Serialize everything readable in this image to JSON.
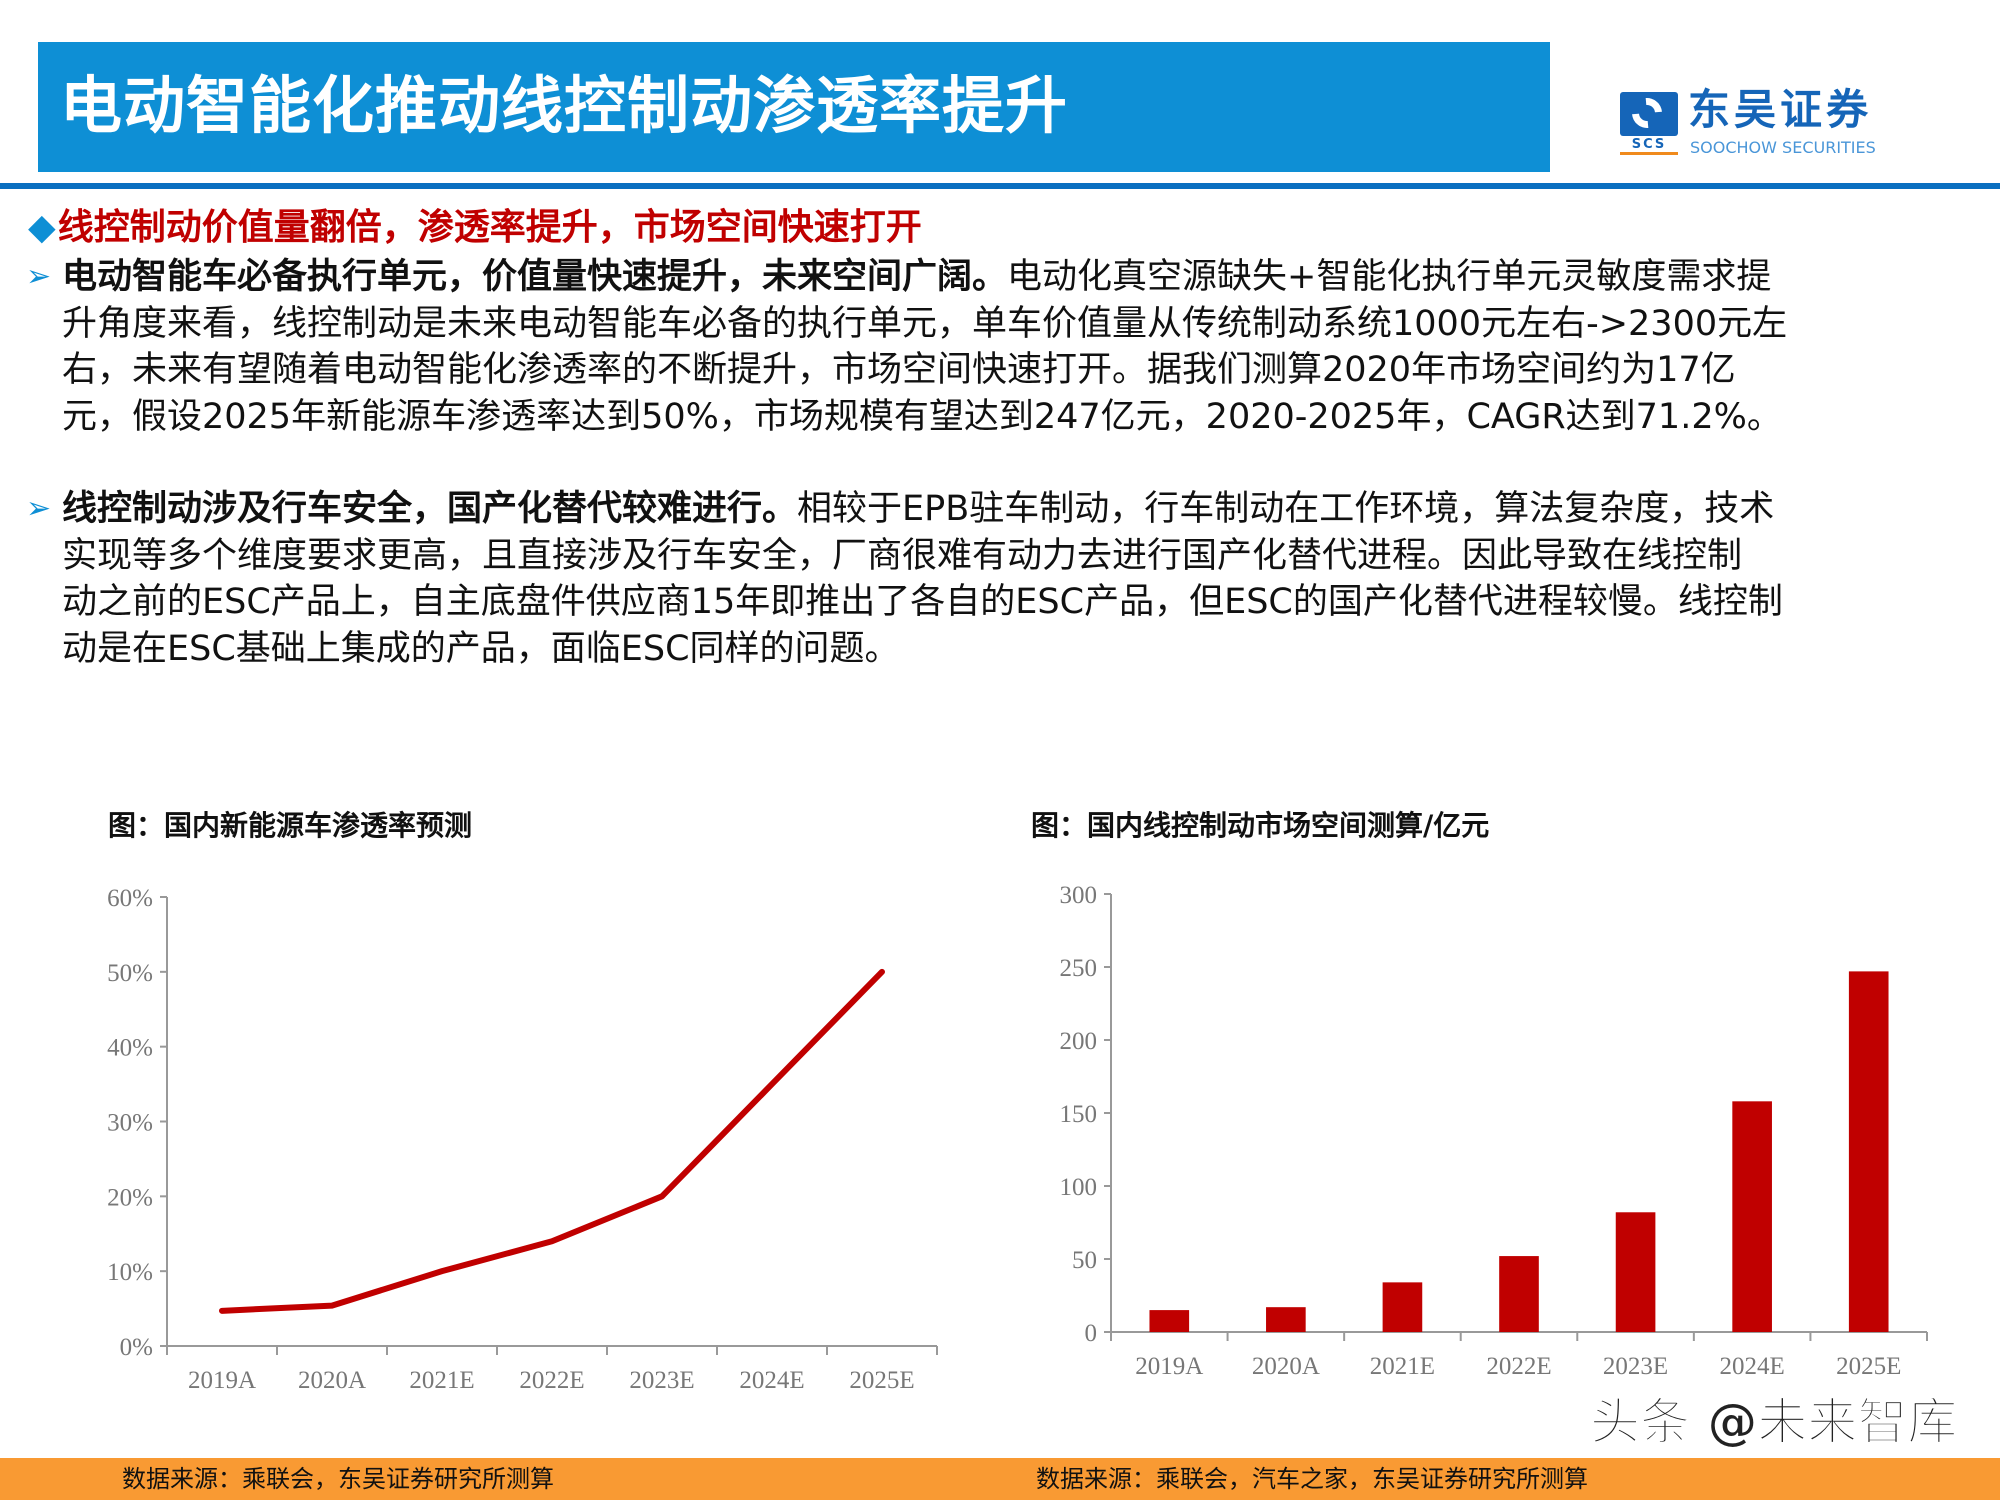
{
  "header": {
    "title": "电动智能化推动线控制动渗透率提升",
    "logo": {
      "cn": "东吴证券",
      "en": "SOOCHOW SECURITIES",
      "mark": "SCS"
    },
    "colors": {
      "banner": "#0e8fd5",
      "rule": "#0b6fc0",
      "accent_red": "#c00000",
      "footer": "#f99a33"
    }
  },
  "content": {
    "heading": "线控制动价值量翻倍，渗透率提升，市场空间快速打开",
    "bullet_icon": "diamond-icon",
    "arrow_icon": "chevron-right-icon",
    "paragraphs": [
      {
        "bold": "电动智能车必备执行单元，价值量快速提升，未来空间广阔。",
        "lines": [
          "电动化真空源缺失+智能化执行单元灵敏度需求提",
          "升角度来看，线控制动是未来电动智能车必备的执行单元，单车价值量从传统制动系统1000元左右->2300元左",
          "右，未来有望随着电动智能化渗透率的不断提升，市场空间快速打开。据我们测算2020年市场空间约为17亿",
          "元，假设2025年新能源车渗透率达到50%，市场规模有望达到247亿元，2020-2025年，CAGR达到71.2%。"
        ]
      },
      {
        "bold": "线控制动涉及行车安全，国产化替代较难进行。",
        "lines": [
          "相较于EPB驻车制动，行车制动在工作环境，算法复杂度，技术",
          "实现等多个维度要求更高，且直接涉及行车安全，厂商很难有动力去进行国产化替代进程。因此导致在线控制",
          "动之前的ESC产品上，自主底盘件供应商15年即推出了各自的ESC产品，但ESC的国产化替代进程较慢。线控制",
          "动是在ESC基础上集成的产品，面临ESC同样的问题。"
        ]
      }
    ]
  },
  "chart_data": [
    {
      "type": "line",
      "title": "图：国内新能源车渗透率预测",
      "categories": [
        "2019A",
        "2020A",
        "2021E",
        "2022E",
        "2023E",
        "2024E",
        "2025E"
      ],
      "values": [
        0.047,
        0.054,
        0.1,
        0.14,
        0.2,
        0.35,
        0.5
      ],
      "yticks": [
        "0%",
        "10%",
        "20%",
        "30%",
        "40%",
        "50%",
        "60%"
      ],
      "ylim": [
        0,
        0.6
      ],
      "color": "#c00000",
      "grid": false,
      "source": "数据来源：乘联会，东吴证券研究所测算"
    },
    {
      "type": "bar",
      "title": "图：国内线控制动市场空间测算/亿元",
      "categories": [
        "2019A",
        "2020A",
        "2021E",
        "2022E",
        "2023E",
        "2024E",
        "2025E"
      ],
      "values": [
        15,
        17,
        34,
        52,
        82,
        158,
        247
      ],
      "yticks": [
        "0",
        "50",
        "100",
        "150",
        "200",
        "250",
        "300"
      ],
      "ylim": [
        0,
        300
      ],
      "color": "#c00000",
      "grid": false,
      "source": "数据来源：乘联会，汽车之家，东吴证券研究所测算"
    }
  ],
  "watermark": "头条 @未来智库"
}
